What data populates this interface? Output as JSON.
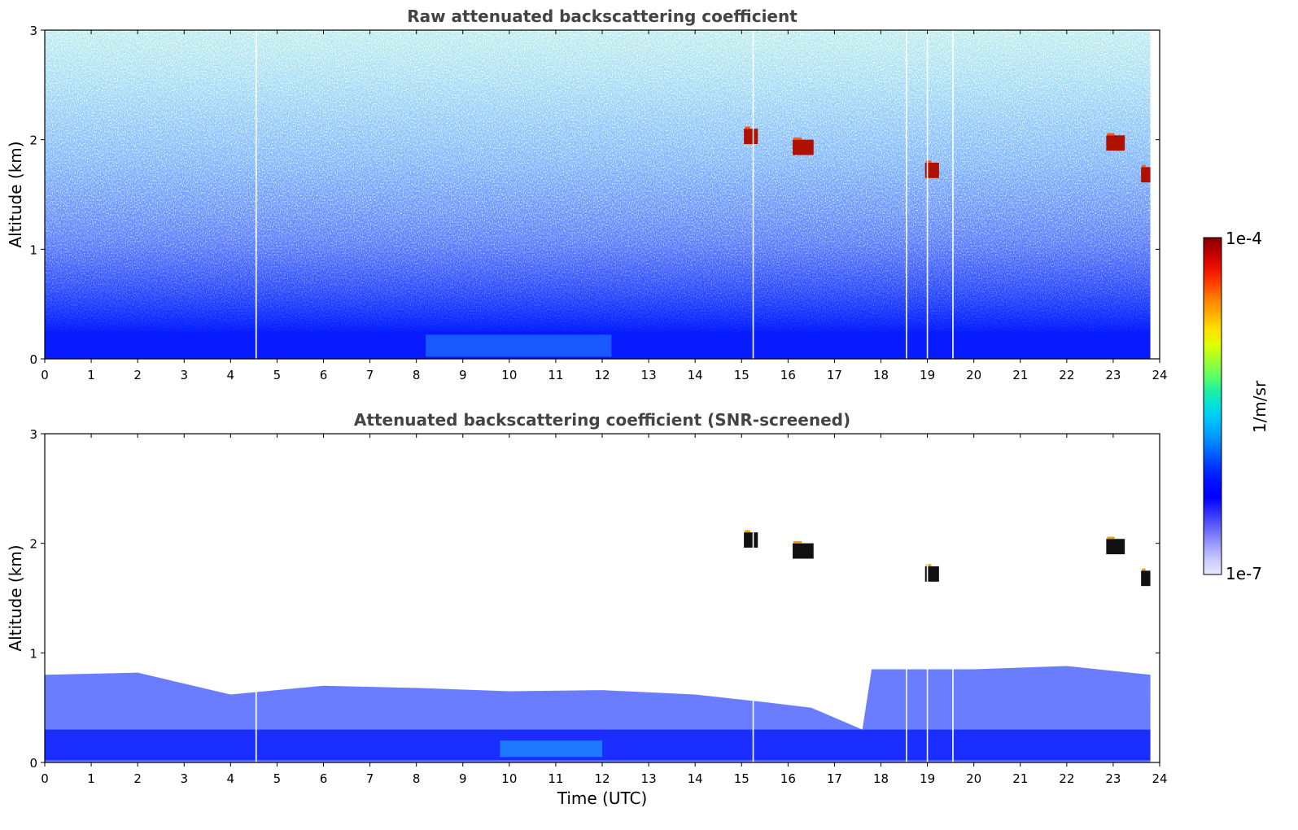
{
  "chart_data": [
    {
      "type": "heatmap",
      "title": "Raw attenuated backscattering coefficient",
      "xlabel": "",
      "ylabel": "Altitude (km)",
      "xlim": [
        0,
        24
      ],
      "ylim": [
        0,
        3
      ],
      "xticks": [
        "0",
        "1",
        "2",
        "3",
        "4",
        "5",
        "6",
        "7",
        "8",
        "9",
        "10",
        "11",
        "12",
        "13",
        "14",
        "15",
        "16",
        "17",
        "18",
        "19",
        "20",
        "21",
        "22",
        "23",
        "24"
      ],
      "yticks": [
        "0",
        "1",
        "2",
        "3"
      ],
      "data_gaps_hours": [
        4.55,
        15.25,
        18.55,
        19.0,
        19.55
      ],
      "boundary_layer_top_km": 0.25,
      "features": [
        {
          "label": "cloud",
          "time_start": 15.05,
          "time_end": 15.35,
          "alt_km": 2.03
        },
        {
          "label": "cloud",
          "time_start": 16.1,
          "time_end": 16.55,
          "alt_km": 1.93
        },
        {
          "label": "cloud",
          "time_start": 18.95,
          "time_end": 19.25,
          "alt_km": 1.72
        },
        {
          "label": "cloud",
          "time_start": 22.85,
          "time_end": 23.25,
          "alt_km": 1.97
        },
        {
          "label": "cloud",
          "time_start": 23.6,
          "time_end": 23.8,
          "alt_km": 1.68
        }
      ]
    },
    {
      "type": "heatmap",
      "title": "Attenuated backscattering coefficient (SNR-screened)",
      "xlabel": "Time (UTC)",
      "ylabel": "Altitude (km)",
      "xlim": [
        0,
        24
      ],
      "ylim": [
        0,
        3
      ],
      "xticks": [
        "0",
        "1",
        "2",
        "3",
        "4",
        "5",
        "6",
        "7",
        "8",
        "9",
        "10",
        "11",
        "12",
        "13",
        "14",
        "15",
        "16",
        "17",
        "18",
        "19",
        "20",
        "21",
        "22",
        "23",
        "24"
      ],
      "yticks": [
        "0",
        "1",
        "2",
        "3"
      ],
      "data_gaps_hours": [
        4.55,
        15.25,
        18.55,
        19.0,
        19.55
      ],
      "boundary_layer_top_profile": [
        {
          "time": 0,
          "alt_km": 0.8
        },
        {
          "time": 2,
          "alt_km": 0.82
        },
        {
          "time": 4,
          "alt_km": 0.62
        },
        {
          "time": 6,
          "alt_km": 0.7
        },
        {
          "time": 8,
          "alt_km": 0.68
        },
        {
          "time": 10,
          "alt_km": 0.65
        },
        {
          "time": 12,
          "alt_km": 0.66
        },
        {
          "time": 14,
          "alt_km": 0.62
        },
        {
          "time": 15.5,
          "alt_km": 0.55
        },
        {
          "time": 16.5,
          "alt_km": 0.5
        },
        {
          "time": 17.6,
          "alt_km": 0.3
        },
        {
          "time": 17.8,
          "alt_km": 0.85
        },
        {
          "time": 20,
          "alt_km": 0.85
        },
        {
          "time": 22,
          "alt_km": 0.88
        },
        {
          "time": 23.8,
          "alt_km": 0.8
        }
      ],
      "features": [
        {
          "label": "cloud",
          "time_start": 15.05,
          "time_end": 15.35,
          "alt_km": 2.03
        },
        {
          "label": "cloud",
          "time_start": 16.1,
          "time_end": 16.55,
          "alt_km": 1.93
        },
        {
          "label": "cloud",
          "time_start": 18.95,
          "time_end": 19.25,
          "alt_km": 1.72
        },
        {
          "label": "cloud",
          "time_start": 22.85,
          "time_end": 23.25,
          "alt_km": 1.97
        },
        {
          "label": "cloud",
          "time_start": 23.6,
          "time_end": 23.8,
          "alt_km": 1.68
        }
      ]
    }
  ],
  "colorbar": {
    "min_label": "1e-7",
    "max_label": "1e-4",
    "unit_label": "1/m/sr",
    "colors": [
      "#e8e8ff",
      "#c8c8ff",
      "#9a9aff",
      "#6666ff",
      "#3333ff",
      "#0000ff",
      "#0010ff",
      "#0033ff",
      "#0066ff",
      "#0099ff",
      "#00c0ff",
      "#00e0e0",
      "#20f0a0",
      "#60ff60",
      "#a0ff30",
      "#e0ff00",
      "#ffe000",
      "#ffb000",
      "#ff8000",
      "#ff4000",
      "#ee1000",
      "#c00000",
      "#800000"
    ]
  }
}
